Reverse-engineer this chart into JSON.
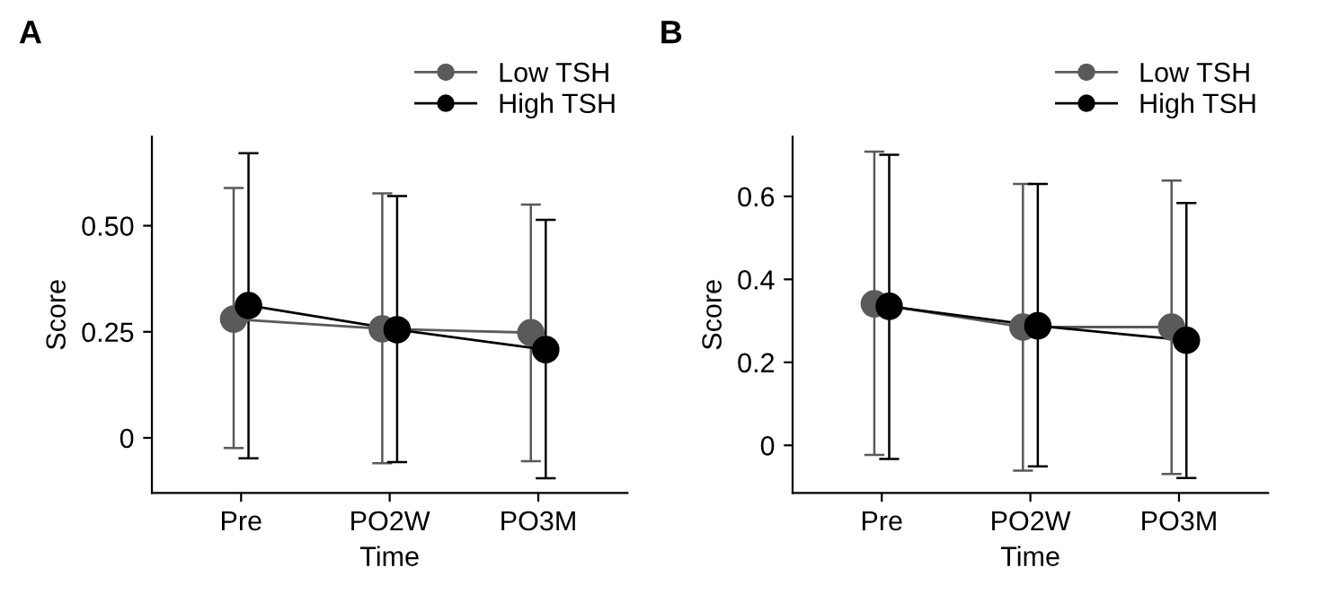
{
  "chart_data": [
    {
      "type": "line",
      "title": "A",
      "xlabel": "Time",
      "ylabel": "Score",
      "categories": [
        "Pre",
        "PO2W",
        "PO3M"
      ],
      "ylim": [
        -0.13,
        0.71
      ],
      "yticks": [
        0,
        0.25,
        {
          "value": 0.5,
          "label": "0.50"
        }
      ],
      "grid": false,
      "legend": "top right",
      "marker": "circle",
      "line_style": "solid",
      "series": [
        {
          "name": "Low TSH",
          "color": "#5a5a5a",
          "values": [
            0.28,
            0.257,
            0.248
          ],
          "errors": [
            [
              -0.024,
              0.589
            ],
            [
              -0.06,
              0.576
            ],
            [
              -0.055,
              0.55
            ]
          ]
        },
        {
          "name": "High TSH",
          "color": "#000000",
          "values": [
            0.312,
            0.255,
            0.208
          ],
          "errors": [
            [
              -0.048,
              0.671
            ],
            [
              -0.057,
              0.57
            ],
            [
              -0.095,
              0.514
            ]
          ]
        }
      ]
    },
    {
      "type": "line",
      "title": "B",
      "xlabel": "Time",
      "ylabel": "Score",
      "categories": [
        "Pre",
        "PO2W",
        "PO3M"
      ],
      "ylim": [
        -0.115,
        0.744
      ],
      "yticks": [
        0,
        0.2,
        0.4,
        0.6
      ],
      "grid": false,
      "legend": "top right",
      "marker": "circle",
      "line_style": "solid",
      "series": [
        {
          "name": "Low TSH",
          "color": "#5a5a5a",
          "values": [
            0.341,
            0.285,
            0.285
          ],
          "errors": [
            [
              -0.023,
              0.708
            ],
            [
              -0.061,
              0.63
            ],
            [
              -0.069,
              0.638
            ]
          ]
        },
        {
          "name": "High TSH",
          "color": "#000000",
          "values": [
            0.335,
            0.288,
            0.253
          ],
          "errors": [
            [
              -0.033,
              0.7
            ],
            [
              -0.051,
              0.63
            ],
            [
              -0.079,
              0.584
            ]
          ]
        }
      ]
    }
  ]
}
